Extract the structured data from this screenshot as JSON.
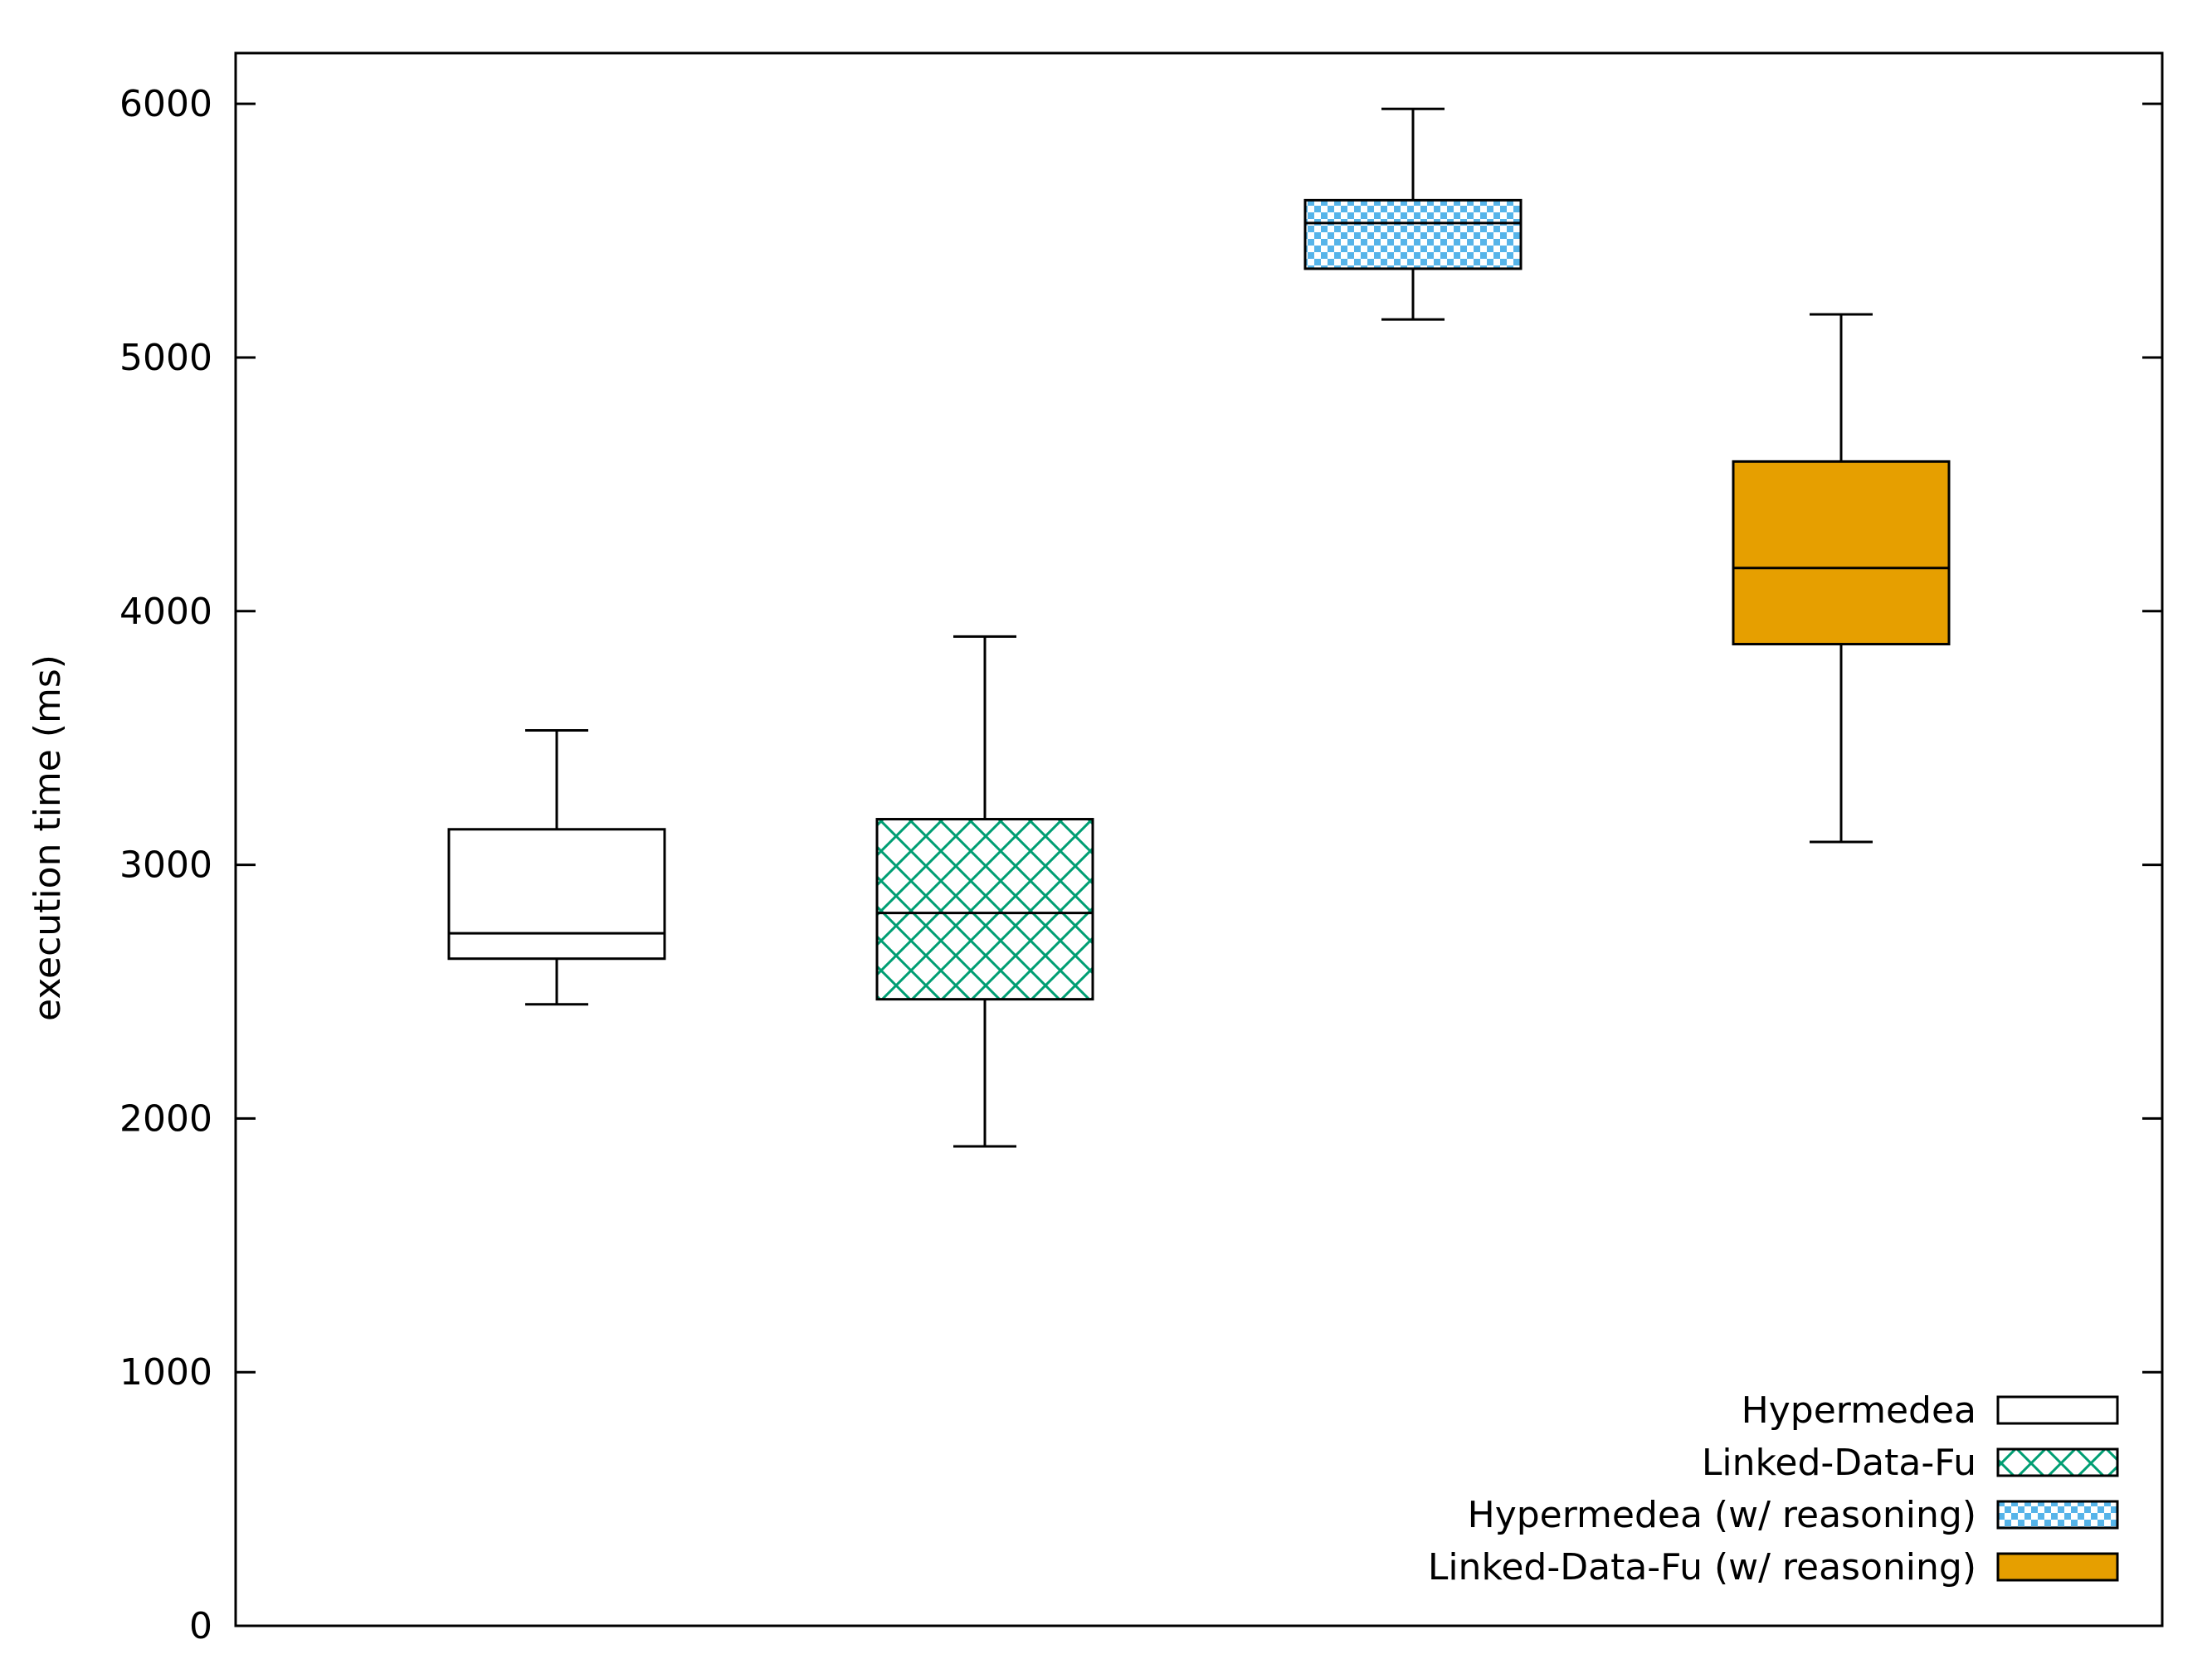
{
  "chart_data": {
    "type": "box",
    "title": "",
    "xlabel": "",
    "ylabel": "execution time (ms)",
    "ylim": [
      0,
      6200
    ],
    "yticks": [
      0,
      1000,
      2000,
      3000,
      4000,
      5000,
      6000
    ],
    "grid": false,
    "legend_position": "bottom-right",
    "series": [
      {
        "name": "Hypermedea",
        "fill": "none",
        "color": "#000000",
        "whisker_low": 2450,
        "q1": 2630,
        "median": 2730,
        "q3": 3140,
        "whisker_high": 3530
      },
      {
        "name": "Linked-Data-Fu",
        "fill": "crosshatch",
        "color": "#009e73",
        "whisker_low": 1890,
        "q1": 2470,
        "median": 2810,
        "q3": 3180,
        "whisker_high": 3900
      },
      {
        "name": "Hypermedea (w/ reasoning)",
        "fill": "checker",
        "color": "#56b4e9",
        "whisker_low": 5150,
        "q1": 5350,
        "median": 5530,
        "q3": 5620,
        "whisker_high": 5980
      },
      {
        "name": "Linked-Data-Fu (w/ reasoning)",
        "fill": "solid",
        "color": "#e69f00",
        "whisker_low": 3090,
        "q1": 3870,
        "median": 4170,
        "q3": 4590,
        "whisker_high": 5170
      }
    ]
  }
}
